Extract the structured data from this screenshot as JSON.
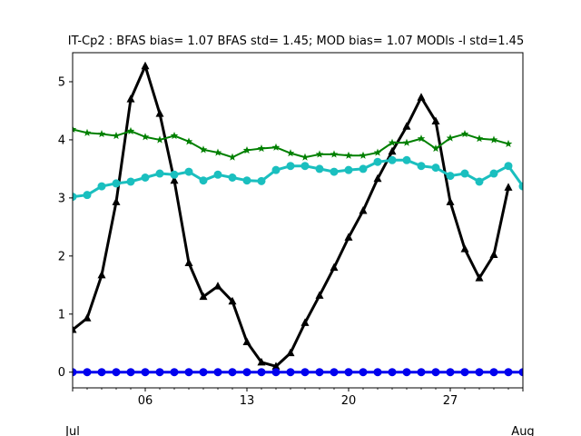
{
  "chart_data": {
    "type": "line",
    "title": "IT-Cp2   : BFAS bias= 1.07 BFAS std= 1.45; MOD bias= 1.07 MODls -l std=1.45",
    "xlabel": "",
    "ylabel": "",
    "x_range": [
      "2021-07-01",
      "2021-08-01"
    ],
    "ylim": [
      -0.27,
      5.5
    ],
    "x_ticks": [
      {
        "date": "2021-07-06",
        "label": "06"
      },
      {
        "date": "2021-07-13",
        "label": "13"
      },
      {
        "date": "2021-07-20",
        "label": "20"
      },
      {
        "date": "2021-07-27",
        "label": "27"
      }
    ],
    "x_secondary_labels": [
      {
        "date": "2021-07-01",
        "label": "Jul"
      },
      {
        "date": "2021-08-01",
        "label": "Aug"
      }
    ],
    "y_ticks": [
      0,
      1,
      2,
      3,
      4,
      5
    ],
    "grid": false,
    "x": [
      "2021-07-01",
      "2021-07-02",
      "2021-07-03",
      "2021-07-04",
      "2021-07-05",
      "2021-07-06",
      "2021-07-07",
      "2021-07-08",
      "2021-07-09",
      "2021-07-10",
      "2021-07-11",
      "2021-07-12",
      "2021-07-13",
      "2021-07-14",
      "2021-07-15",
      "2021-07-16",
      "2021-07-17",
      "2021-07-18",
      "2021-07-19",
      "2021-07-20",
      "2021-07-21",
      "2021-07-22",
      "2021-07-23",
      "2021-07-24",
      "2021-07-25",
      "2021-07-26",
      "2021-07-27",
      "2021-07-28",
      "2021-07-29",
      "2021-07-30",
      "2021-07-31",
      "2021-08-01"
    ],
    "series": [
      {
        "color": "#000000",
        "marker": "triangle",
        "line_width": 3,
        "values": [
          0.73,
          0.93,
          1.67,
          2.93,
          4.7,
          5.27,
          4.45,
          3.3,
          1.88,
          1.3,
          1.48,
          1.22,
          0.52,
          0.17,
          0.1,
          0.33,
          0.85,
          1.32,
          1.8,
          2.32,
          2.78,
          3.33,
          3.8,
          4.23,
          4.73,
          4.32,
          2.93,
          2.12,
          1.62,
          2.02,
          3.18,
          null
        ]
      },
      {
        "color": "#1ABFBF",
        "marker": "circle",
        "line_width": 3,
        "values": [
          3.02,
          3.05,
          3.2,
          3.25,
          3.28,
          3.35,
          3.42,
          3.4,
          3.45,
          3.3,
          3.4,
          3.35,
          3.3,
          3.29,
          3.48,
          3.55,
          3.55,
          3.5,
          3.45,
          3.48,
          3.5,
          3.62,
          3.65,
          3.65,
          3.55,
          3.52,
          3.38,
          3.42,
          3.28,
          3.42,
          3.55,
          3.2
        ]
      },
      {
        "color": "#008000",
        "marker": "star",
        "line_width": 2,
        "values": [
          4.18,
          4.12,
          4.1,
          4.07,
          4.15,
          4.05,
          4.0,
          4.07,
          3.97,
          3.83,
          3.78,
          3.7,
          3.82,
          3.85,
          3.87,
          3.77,
          3.7,
          3.75,
          3.75,
          3.73,
          3.73,
          3.78,
          3.95,
          3.95,
          4.02,
          3.85,
          4.03,
          4.1,
          4.02,
          4.0,
          3.93,
          null
        ]
      },
      {
        "color": "#0000EE",
        "marker": "circle",
        "line_width": 3,
        "values": [
          0,
          0,
          0,
          0,
          0,
          0,
          0,
          0,
          0,
          0,
          0,
          0,
          0,
          0,
          0,
          0,
          0,
          0,
          0,
          0,
          0,
          0,
          0,
          0,
          0,
          0,
          0,
          0,
          0,
          0,
          0,
          0
        ]
      }
    ]
  }
}
